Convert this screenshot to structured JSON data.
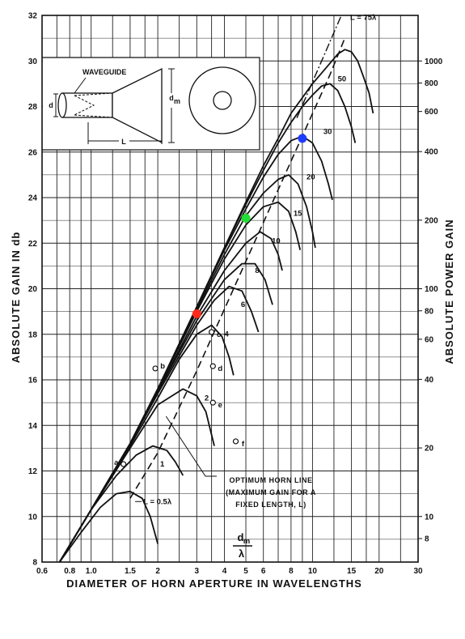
{
  "chart_data": {
    "type": "line",
    "title": "",
    "xlabel": "DIAMETER OF HORN APERTURE IN WAVELENGTHS",
    "ylabel": "ABSOLUTE GAIN IN db",
    "y2label": "ABSOLUTE POWER GAIN",
    "x_scale": "log",
    "xlim": [
      0.6,
      30
    ],
    "ylim": [
      8,
      32
    ],
    "x_ticks": [
      {
        "v": 0.6,
        "label": "0.6"
      },
      {
        "v": 0.8,
        "label": "0.8"
      },
      {
        "v": 1.0,
        "label": "1.0"
      },
      {
        "v": 1.5,
        "label": "1.5"
      },
      {
        "v": 2,
        "label": "2"
      },
      {
        "v": 3,
        "label": "3"
      },
      {
        "v": 4,
        "label": "4"
      },
      {
        "v": 5,
        "label": "5"
      },
      {
        "v": 6,
        "label": "6"
      },
      {
        "v": 8,
        "label": "8"
      },
      {
        "v": 10,
        "label": "10"
      },
      {
        "v": 15,
        "label": "15"
      },
      {
        "v": 20,
        "label": "20"
      },
      {
        "v": 30,
        "label": "30"
      }
    ],
    "y_ticks": [
      8,
      10,
      12,
      14,
      16,
      18,
      20,
      22,
      24,
      26,
      28,
      30,
      32
    ],
    "y2_ticks": [
      {
        "v": 8,
        "label": "8"
      },
      {
        "v": 10,
        "label": "10"
      },
      {
        "v": 20,
        "label": "20"
      },
      {
        "v": 40,
        "label": "40"
      },
      {
        "v": 60,
        "label": "60"
      },
      {
        "v": 80,
        "label": "80"
      },
      {
        "v": 100,
        "label": "100"
      },
      {
        "v": 200,
        "label": "200"
      },
      {
        "v": 400,
        "label": "400"
      },
      {
        "v": 600,
        "label": "600"
      },
      {
        "v": 800,
        "label": "800"
      },
      {
        "v": 1000,
        "label": "1000"
      }
    ],
    "grid": true,
    "x_axis_side_label": {
      "numerator": "d",
      "numerator_sub": "m",
      "denominator": "λ"
    },
    "series": [
      {
        "name": "L = 0.5λ",
        "label": "L = 0.5λ",
        "points": [
          [
            0.72,
            8
          ],
          [
            0.9,
            9.3
          ],
          [
            1.1,
            10.4
          ],
          [
            1.3,
            11.0
          ],
          [
            1.5,
            11.1
          ],
          [
            1.7,
            10.8
          ],
          [
            1.85,
            10.0
          ],
          [
            2.0,
            8.8
          ]
        ]
      },
      {
        "name": "1",
        "label": "1",
        "points": [
          [
            0.72,
            8
          ],
          [
            1.0,
            10.3
          ],
          [
            1.3,
            11.8
          ],
          [
            1.6,
            12.7
          ],
          [
            1.9,
            13.1
          ],
          [
            2.2,
            12.9
          ],
          [
            2.4,
            12.4
          ],
          [
            2.6,
            11.8
          ]
        ]
      },
      {
        "name": "2",
        "label": "2",
        "points": [
          [
            0.72,
            8
          ],
          [
            1.0,
            10.3
          ],
          [
            1.5,
            13.0
          ],
          [
            2.0,
            14.9
          ],
          [
            2.6,
            15.6
          ],
          [
            3.0,
            15.3
          ],
          [
            3.3,
            14.6
          ],
          [
            3.6,
            13.1
          ]
        ]
      },
      {
        "name": "4",
        "label": "4",
        "points": [
          [
            0.72,
            8
          ],
          [
            1.0,
            10.3
          ],
          [
            1.5,
            13.1
          ],
          [
            2.0,
            15.2
          ],
          [
            2.5,
            16.9
          ],
          [
            3.0,
            18.0
          ],
          [
            3.5,
            18.4
          ],
          [
            3.9,
            17.9
          ],
          [
            4.2,
            17.0
          ],
          [
            4.4,
            16.2
          ]
        ]
      },
      {
        "name": "6",
        "label": "6",
        "points": [
          [
            0.72,
            8
          ],
          [
            1.0,
            10.3
          ],
          [
            1.5,
            13.2
          ],
          [
            2.0,
            15.4
          ],
          [
            3.0,
            18.4
          ],
          [
            3.6,
            19.5
          ],
          [
            4.2,
            20.1
          ],
          [
            4.8,
            19.9
          ],
          [
            5.3,
            19.0
          ],
          [
            5.7,
            18.1
          ]
        ]
      },
      {
        "name": "8",
        "label": "8",
        "points": [
          [
            0.72,
            8
          ],
          [
            1.0,
            10.3
          ],
          [
            1.5,
            13.2
          ],
          [
            2.0,
            15.5
          ],
          [
            3.0,
            18.6
          ],
          [
            4.0,
            20.4
          ],
          [
            4.8,
            21.1
          ],
          [
            5.5,
            21.1
          ],
          [
            6.1,
            20.4
          ],
          [
            6.6,
            19.3
          ]
        ]
      },
      {
        "name": "10",
        "label": "10",
        "points": [
          [
            0.72,
            8
          ],
          [
            1.0,
            10.3
          ],
          [
            1.5,
            13.2
          ],
          [
            2.0,
            15.5
          ],
          [
            3.0,
            18.8
          ],
          [
            4.0,
            20.8
          ],
          [
            5.0,
            22.0
          ],
          [
            5.8,
            22.5
          ],
          [
            6.5,
            22.2
          ],
          [
            7.0,
            21.5
          ],
          [
            7.3,
            20.8
          ]
        ]
      },
      {
        "name": "15",
        "label": "15",
        "points": [
          [
            0.72,
            8
          ],
          [
            1.0,
            10.3
          ],
          [
            1.5,
            13.2
          ],
          [
            2.0,
            15.6
          ],
          [
            3.0,
            19.0
          ],
          [
            4.0,
            21.3
          ],
          [
            5.0,
            22.8
          ],
          [
            6.0,
            23.6
          ],
          [
            7.0,
            23.8
          ],
          [
            7.8,
            23.4
          ],
          [
            8.4,
            22.5
          ],
          [
            8.8,
            21.7
          ]
        ]
      },
      {
        "name": "20",
        "label": "20",
        "points": [
          [
            0.72,
            8
          ],
          [
            1.0,
            10.3
          ],
          [
            1.5,
            13.2
          ],
          [
            2.0,
            15.6
          ],
          [
            3.0,
            19.1
          ],
          [
            4.0,
            21.5
          ],
          [
            5.0,
            23.2
          ],
          [
            6.0,
            24.2
          ],
          [
            7.0,
            24.8
          ],
          [
            7.8,
            25.0
          ],
          [
            8.6,
            24.6
          ],
          [
            9.4,
            23.6
          ],
          [
            10.0,
            22.5
          ],
          [
            10.3,
            21.8
          ]
        ]
      },
      {
        "name": "30",
        "label": "30",
        "points": [
          [
            0.72,
            8
          ],
          [
            1.0,
            10.3
          ],
          [
            1.5,
            13.2
          ],
          [
            2.0,
            15.6
          ],
          [
            3.0,
            19.2
          ],
          [
            4.0,
            21.7
          ],
          [
            5.0,
            23.5
          ],
          [
            6.0,
            24.9
          ],
          [
            7.0,
            25.9
          ],
          [
            8.0,
            26.5
          ],
          [
            9.0,
            26.7
          ],
          [
            10.0,
            26.4
          ],
          [
            11.0,
            25.6
          ],
          [
            11.8,
            24.6
          ],
          [
            12.3,
            23.9
          ]
        ]
      },
      {
        "name": "50",
        "label": "50",
        "points": [
          [
            0.72,
            8
          ],
          [
            1.0,
            10.3
          ],
          [
            1.5,
            13.2
          ],
          [
            2.0,
            15.6
          ],
          [
            3.0,
            19.2
          ],
          [
            4.0,
            21.8
          ],
          [
            5.0,
            23.7
          ],
          [
            6.0,
            25.2
          ],
          [
            7.0,
            26.4
          ],
          [
            8.0,
            27.3
          ],
          [
            9.0,
            28.0
          ],
          [
            10.0,
            28.5
          ],
          [
            11.0,
            28.9
          ],
          [
            12.0,
            29.0
          ],
          [
            13.0,
            28.7
          ],
          [
            14.0,
            28.0
          ],
          [
            15.0,
            27.1
          ],
          [
            15.6,
            26.4
          ]
        ]
      },
      {
        "name": "75",
        "label": "L = 75λ",
        "points": [
          [
            0.72,
            8
          ],
          [
            1.0,
            10.3
          ],
          [
            1.5,
            13.2
          ],
          [
            2.0,
            15.6
          ],
          [
            3.0,
            19.2
          ],
          [
            4.0,
            21.8
          ],
          [
            5.0,
            23.8
          ],
          [
            6.0,
            25.4
          ],
          [
            7.0,
            26.6
          ],
          [
            8.0,
            27.7
          ],
          [
            10.0,
            29.0
          ],
          [
            12.0,
            29.9
          ],
          [
            13.0,
            30.3
          ],
          [
            14.0,
            30.5
          ],
          [
            15.0,
            30.4
          ],
          [
            16.0,
            30.0
          ],
          [
            17.0,
            29.3
          ],
          [
            18.0,
            28.6
          ],
          [
            18.8,
            27.7
          ]
        ]
      }
    ],
    "optimum_line": {
      "label_lines": [
        "OPTIMUM HORN LINE",
        "(MAXIMUM GAIN FOR A",
        "FIXED LENGTH, L)"
      ],
      "points": [
        [
          1.5,
          10.8
        ],
        [
          2.0,
          12.8
        ],
        [
          3.0,
          16.4
        ],
        [
          5.0,
          21.2
        ],
        [
          8.0,
          25.6
        ],
        [
          12.0,
          29.4
        ],
        [
          14.0,
          31.0
        ]
      ]
    },
    "dashdot_line": {
      "points": [
        [
          8.5,
          27.5
        ],
        [
          11.0,
          30.0
        ],
        [
          13.5,
          32.0
        ]
      ]
    },
    "markers": [
      {
        "label": "a",
        "x": 1.4,
        "y": 12.3
      },
      {
        "label": "b",
        "x": 1.95,
        "y": 16.5
      },
      {
        "label": "c",
        "x": 3.5,
        "y": 18.1
      },
      {
        "label": "d",
        "x": 3.55,
        "y": 16.6
      },
      {
        "label": "e",
        "x": 3.55,
        "y": 15.0
      },
      {
        "label": "f",
        "x": 4.5,
        "y": 13.3
      }
    ],
    "highlight_points": [
      {
        "x": 3.0,
        "y": 18.9,
        "color": "#ff2a1a"
      },
      {
        "x": 5.0,
        "y": 23.1,
        "color": "#22dd33"
      },
      {
        "x": 9.0,
        "y": 26.6,
        "color": "#1f3dff"
      }
    ],
    "inset": {
      "waveguide_label": "WAVEGUIDE",
      "d_label": "d",
      "dm_label": "d",
      "dm_sub": "m",
      "L_label": "L"
    }
  }
}
